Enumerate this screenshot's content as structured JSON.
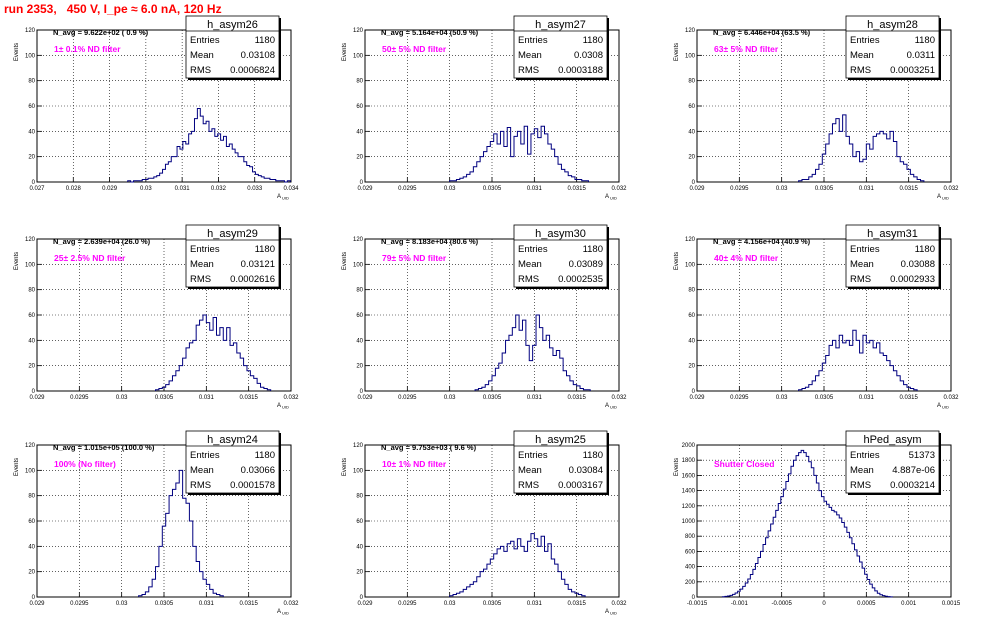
{
  "page": {
    "run_title": "run 2353,   450 V, I_pe ≈ 6.0 nA, 120 Hz"
  },
  "stat_labels": {
    "entries": "Entries",
    "mean": "Mean",
    "rms": "RMS"
  },
  "chart_data": [
    {
      "type": "histogram",
      "name": "h_asym26",
      "navg": "N_avg = 9.622e+02 ( 0.9 %)",
      "filter": "1± 0.1% ND filter",
      "entries": "1180",
      "mean": "0.03108",
      "rms": "0.0006824",
      "ylabel": "Events",
      "xlabel": "A",
      "xlabel_sub": "UID",
      "xlim": [
        0.027,
        0.034
      ],
      "ylim": [
        0,
        120
      ],
      "xticks": [
        0.027,
        0.028,
        0.029,
        0.03,
        0.031,
        0.032,
        0.033,
        0.034
      ],
      "xtick_labels": [
        "0.027",
        "0.028",
        "0.029",
        "0.03",
        "0.031",
        "0.032",
        "0.033",
        "0.034"
      ],
      "yticks": [
        0,
        20,
        40,
        60,
        80,
        100,
        120
      ],
      "ytick_labels": [
        "0",
        "20",
        "40",
        "60",
        "80",
        "100",
        "120"
      ],
      "bin_lo": 0.0295,
      "bin_width": 8e-05,
      "counts": [
        1,
        0,
        1,
        1,
        1,
        2,
        2,
        3,
        3,
        4,
        5,
        7,
        10,
        14,
        16,
        20,
        20,
        28,
        26,
        32,
        30,
        38,
        40,
        50,
        58,
        52,
        46,
        48,
        40,
        42,
        36,
        38,
        33,
        36,
        28,
        30,
        26,
        23,
        20,
        20,
        16,
        13,
        12,
        8,
        6,
        5,
        4,
        3,
        3,
        2,
        2,
        1,
        1,
        1,
        0,
        1
      ]
    },
    {
      "type": "histogram",
      "name": "h_asym27",
      "navg": "N_avg = 5.164e+04 (50.9 %)",
      "filter": "50± 5% ND filter",
      "entries": "1180",
      "mean": "0.0308",
      "rms": "0.0003188",
      "ylabel": "Events",
      "xlabel": "A",
      "xlabel_sub": "UID",
      "xlim": [
        0.029,
        0.032
      ],
      "ylim": [
        0,
        120
      ],
      "xticks": [
        0.029,
        0.0295,
        0.03,
        0.0305,
        0.031,
        0.0315,
        0.032
      ],
      "xtick_labels": [
        "0.029",
        "0.0295",
        "0.03",
        "0.0305",
        "0.031",
        "0.0315",
        "0.032"
      ],
      "yticks": [
        0,
        20,
        40,
        60,
        80,
        100,
        120
      ],
      "ytick_labels": [
        "0",
        "20",
        "40",
        "60",
        "80",
        "100",
        "120"
      ],
      "bin_lo": 0.03,
      "bin_width": 4e-05,
      "counts": [
        1,
        1,
        2,
        3,
        4,
        6,
        8,
        12,
        16,
        20,
        24,
        28,
        32,
        38,
        30,
        40,
        28,
        43,
        20,
        36,
        40,
        30,
        44,
        22,
        38,
        42,
        35,
        44,
        38,
        30,
        26,
        20,
        14,
        10,
        8,
        5,
        4,
        2,
        2,
        1,
        1
      ]
    },
    {
      "type": "histogram",
      "name": "h_asym28",
      "navg": "N_avg = 6.446e+04 (63.5 %)",
      "filter": "63± 5% ND filter",
      "entries": "1180",
      "mean": "0.0311",
      "rms": "0.0003251",
      "ylabel": "Events",
      "xlabel": "A",
      "xlabel_sub": "UID",
      "xlim": [
        0.029,
        0.032
      ],
      "ylim": [
        0,
        120
      ],
      "xticks": [
        0.029,
        0.0295,
        0.03,
        0.0305,
        0.031,
        0.0315,
        0.032
      ],
      "xtick_labels": [
        "0.029",
        "0.0295",
        "0.03",
        "0.0305",
        "0.031",
        "0.0315",
        "0.032"
      ],
      "yticks": [
        0,
        20,
        40,
        60,
        80,
        100,
        120
      ],
      "ytick_labels": [
        "0",
        "20",
        "40",
        "60",
        "80",
        "100",
        "120"
      ],
      "bin_lo": 0.0302,
      "bin_width": 4e-05,
      "counts": [
        1,
        2,
        2,
        4,
        6,
        10,
        14,
        22,
        30,
        38,
        46,
        50,
        40,
        53,
        36,
        30,
        20,
        24,
        16,
        18,
        30,
        26,
        36,
        38,
        40,
        38,
        34,
        40,
        32,
        20,
        16,
        14,
        10,
        6,
        4,
        2,
        1
      ]
    },
    {
      "type": "histogram",
      "name": "h_asym29",
      "navg": "N_avg = 2.639e+04 (26.0 %)",
      "filter": "25± 2.5% ND filter",
      "entries": "1180",
      "mean": "0.03121",
      "rms": "0.0002616",
      "ylabel": "Events",
      "xlabel": "A",
      "xlabel_sub": "UID",
      "xlim": [
        0.029,
        0.032
      ],
      "ylim": [
        0,
        120
      ],
      "xticks": [
        0.029,
        0.0295,
        0.03,
        0.0305,
        0.031,
        0.0315,
        0.032
      ],
      "xtick_labels": [
        "0.029",
        "0.0295",
        "0.03",
        "0.0305",
        "0.031",
        "0.0315",
        "0.032"
      ],
      "yticks": [
        0,
        20,
        40,
        60,
        80,
        100,
        120
      ],
      "ytick_labels": [
        "0",
        "20",
        "40",
        "60",
        "80",
        "100",
        "120"
      ],
      "bin_lo": 0.0304,
      "bin_width": 4e-05,
      "counts": [
        1,
        2,
        3,
        5,
        8,
        12,
        16,
        20,
        26,
        34,
        38,
        40,
        52,
        56,
        60,
        54,
        48,
        58,
        44,
        50,
        40,
        50,
        36,
        38,
        30,
        26,
        20,
        16,
        12,
        10,
        6,
        3,
        2,
        1
      ]
    },
    {
      "type": "histogram",
      "name": "h_asym30",
      "navg": "N_avg = 8.183e+04 (80.6 %)",
      "filter": "79± 5% ND filter",
      "entries": "1180",
      "mean": "0.03089",
      "rms": "0.0002535",
      "ylabel": "Events",
      "xlabel": "A",
      "xlabel_sub": "UID",
      "xlim": [
        0.029,
        0.032
      ],
      "ylim": [
        0,
        120
      ],
      "xticks": [
        0.029,
        0.0295,
        0.03,
        0.0305,
        0.031,
        0.0315,
        0.032
      ],
      "xtick_labels": [
        "0.029",
        "0.0295",
        "0.03",
        "0.0305",
        "0.031",
        "0.0315",
        "0.032"
      ],
      "yticks": [
        0,
        20,
        40,
        60,
        80,
        100,
        120
      ],
      "ytick_labels": [
        "0",
        "20",
        "40",
        "60",
        "80",
        "100",
        "120"
      ],
      "bin_lo": 0.0303,
      "bin_width": 4e-05,
      "counts": [
        1,
        2,
        3,
        5,
        8,
        12,
        18,
        22,
        30,
        40,
        44,
        50,
        60,
        48,
        56,
        36,
        24,
        36,
        60,
        50,
        40,
        44,
        34,
        28,
        32,
        26,
        16,
        12,
        8,
        5,
        4,
        2,
        1,
        1
      ]
    },
    {
      "type": "histogram",
      "name": "h_asym31",
      "navg": "N_avg = 4.156e+04 (40.9 %)",
      "filter": "40± 4% ND filter",
      "entries": "1180",
      "mean": "0.03088",
      "rms": "0.0002933",
      "ylabel": "Events",
      "xlabel": "A",
      "xlabel_sub": "UID",
      "xlim": [
        0.029,
        0.032
      ],
      "ylim": [
        0,
        120
      ],
      "xticks": [
        0.029,
        0.0295,
        0.03,
        0.0305,
        0.031,
        0.0315,
        0.032
      ],
      "xtick_labels": [
        "0.029",
        "0.0295",
        "0.03",
        "0.0305",
        "0.031",
        "0.0315",
        "0.032"
      ],
      "yticks": [
        0,
        20,
        40,
        60,
        80,
        100,
        120
      ],
      "ytick_labels": [
        "0",
        "20",
        "40",
        "60",
        "80",
        "100",
        "120"
      ],
      "bin_lo": 0.0302,
      "bin_width": 4e-05,
      "counts": [
        1,
        2,
        3,
        5,
        8,
        12,
        16,
        22,
        28,
        36,
        40,
        34,
        44,
        38,
        40,
        36,
        48,
        40,
        30,
        44,
        38,
        40,
        34,
        38,
        30,
        28,
        24,
        20,
        16,
        12,
        8,
        5,
        3,
        2,
        1
      ]
    },
    {
      "type": "histogram",
      "name": "h_asym24",
      "navg": "N_avg = 1.015e+05 (100.0 %)",
      "filter": "100% (No filter)",
      "entries": "1180",
      "mean": "0.03066",
      "rms": "0.0001578",
      "ylabel": "Events",
      "xlabel": "A",
      "xlabel_sub": "UID",
      "xlim": [
        0.029,
        0.032
      ],
      "ylim": [
        0,
        120
      ],
      "xticks": [
        0.029,
        0.0295,
        0.03,
        0.0305,
        0.031,
        0.0315,
        0.032
      ],
      "xtick_labels": [
        "0.029",
        "0.0295",
        "0.03",
        "0.0305",
        "0.031",
        "0.0315",
        "0.032"
      ],
      "yticks": [
        0,
        20,
        40,
        60,
        80,
        100,
        120
      ],
      "ytick_labels": [
        "0",
        "20",
        "40",
        "60",
        "80",
        "100",
        "120"
      ],
      "bin_lo": 0.0302,
      "bin_width": 4e-05,
      "counts": [
        1,
        2,
        4,
        8,
        14,
        24,
        40,
        56,
        66,
        80,
        85,
        90,
        100,
        78,
        74,
        60,
        40,
        28,
        20,
        14,
        10,
        6,
        3,
        2,
        1
      ]
    },
    {
      "type": "histogram",
      "name": "h_asym25",
      "navg": "N_avg = 9.753e+03 ( 9.6 %)",
      "filter": "10± 1% ND filter",
      "entries": "1180",
      "mean": "0.03084",
      "rms": "0.0003167",
      "ylabel": "Events",
      "xlabel": "A",
      "xlabel_sub": "UID",
      "xlim": [
        0.029,
        0.032
      ],
      "ylim": [
        0,
        120
      ],
      "xticks": [
        0.029,
        0.0295,
        0.03,
        0.0305,
        0.031,
        0.0315,
        0.032
      ],
      "xtick_labels": [
        "0.029",
        "0.0295",
        "0.03",
        "0.0305",
        "0.031",
        "0.0315",
        "0.032"
      ],
      "yticks": [
        0,
        20,
        40,
        60,
        80,
        100,
        120
      ],
      "ytick_labels": [
        "0",
        "20",
        "40",
        "60",
        "80",
        "100",
        "120"
      ],
      "bin_lo": 0.03,
      "bin_width": 4e-05,
      "counts": [
        1,
        2,
        3,
        4,
        6,
        8,
        10,
        12,
        16,
        20,
        22,
        26,
        30,
        34,
        38,
        40,
        36,
        42,
        44,
        38,
        46,
        40,
        36,
        44,
        50,
        46,
        40,
        48,
        36,
        42,
        30,
        26,
        20,
        14,
        10,
        6,
        4,
        3,
        2,
        1
      ]
    },
    {
      "type": "histogram",
      "name": "hPed_asym",
      "navg": "",
      "filter": "Shutter Closed",
      "entries": "51373",
      "mean": "4.887e-06",
      "rms": "0.0003214",
      "ylabel": "Events",
      "xlabel": "",
      "xlabel_sub": "",
      "xlim": [
        -0.0015,
        0.0015
      ],
      "ylim": [
        0,
        2000
      ],
      "xticks": [
        -0.0015,
        -0.001,
        -0.0005,
        0,
        0.0005,
        0.001,
        0.0015
      ],
      "xtick_labels": [
        "-0.0015",
        "-0.001",
        "-0.0005",
        "0",
        "0.0005",
        "0.001",
        "0.0015"
      ],
      "yticks": [
        0,
        200,
        400,
        600,
        800,
        1000,
        1200,
        1400,
        1600,
        1800,
        2000
      ],
      "ytick_labels": [
        "0",
        "200",
        "400",
        "600",
        "800",
        "1000",
        "1200",
        "1400",
        "1600",
        "1800",
        "2000"
      ],
      "bin_lo": -0.0012,
      "bin_width": 3e-05,
      "counts": [
        4,
        8,
        14,
        22,
        34,
        52,
        76,
        104,
        140,
        184,
        236,
        296,
        364,
        440,
        520,
        600,
        690,
        780,
        870,
        960,
        1050,
        1140,
        1230,
        1320,
        1420,
        1520,
        1620,
        1720,
        1800,
        1860,
        1900,
        1930,
        1900,
        1850,
        1780,
        1700,
        1600,
        1500,
        1400,
        1320,
        1260,
        1220,
        1180,
        1140,
        1120,
        1080,
        1040,
        980,
        920,
        850,
        780,
        700,
        620,
        540,
        460,
        380,
        300,
        230,
        170,
        120,
        80,
        50,
        30,
        18,
        10,
        5,
        2
      ]
    }
  ]
}
